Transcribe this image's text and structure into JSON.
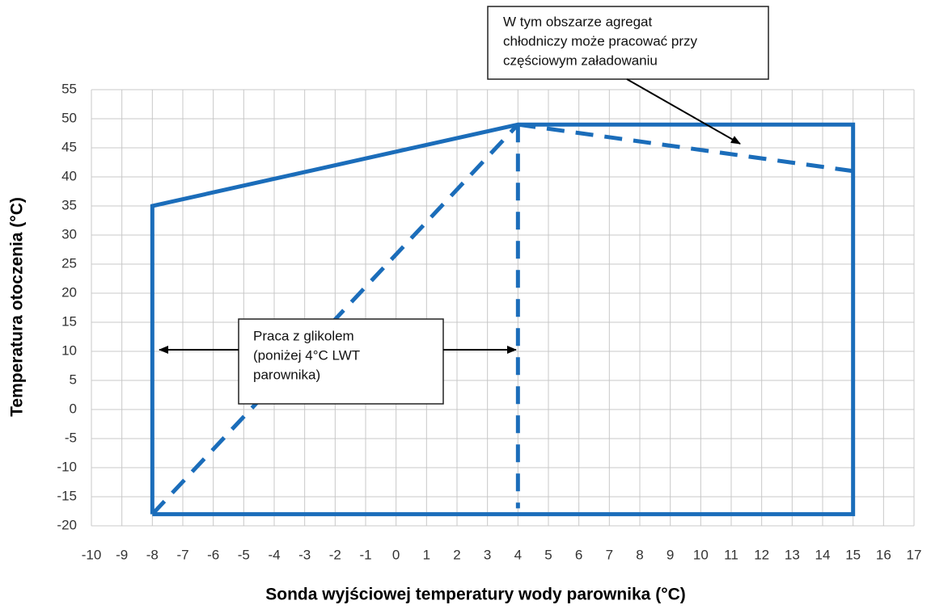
{
  "chart_data": {
    "type": "line",
    "xlabel": "Sonda wyjściowej temperatury wody parownika  (°C)",
    "ylabel": "Temperatura otoczenia (°C)",
    "xlim": [
      -10,
      17
    ],
    "ylim": [
      -20,
      55
    ],
    "xticks": [
      -10,
      -9,
      -8,
      -7,
      -6,
      -5,
      -4,
      -3,
      -2,
      -1,
      0,
      1,
      2,
      3,
      4,
      5,
      6,
      7,
      8,
      9,
      10,
      11,
      12,
      13,
      14,
      15,
      16,
      17
    ],
    "yticks": [
      -20,
      -15,
      -10,
      -5,
      0,
      5,
      10,
      15,
      20,
      25,
      30,
      35,
      40,
      45,
      50,
      55
    ],
    "grid": true,
    "series": [
      {
        "color": "#1b6dba",
        "dashed": false,
        "x": [
          -8,
          -8,
          4,
          15,
          15,
          -8
        ],
        "values": [
          -18,
          35,
          49,
          49,
          -18,
          -18
        ]
      },
      {
        "color": "#1b6dba",
        "dashed": true,
        "x": [
          -8,
          4
        ],
        "values": [
          -18,
          49
        ]
      },
      {
        "color": "#1b6dba",
        "dashed": true,
        "x": [
          4,
          4
        ],
        "values": [
          49,
          -17
        ]
      },
      {
        "color": "#1b6dba",
        "dashed": true,
        "x": [
          4,
          15
        ],
        "values": [
          49,
          41
        ]
      }
    ],
    "annotations": [
      {
        "lines": [
          "W tym obszarze agregat",
          "chłodniczy może pracować przy",
          "częściowym załadowaniu"
        ]
      },
      {
        "lines": [
          "Praca z glikolem",
          "(poniżej  4°C  LWT",
          "parownika)"
        ]
      }
    ]
  }
}
